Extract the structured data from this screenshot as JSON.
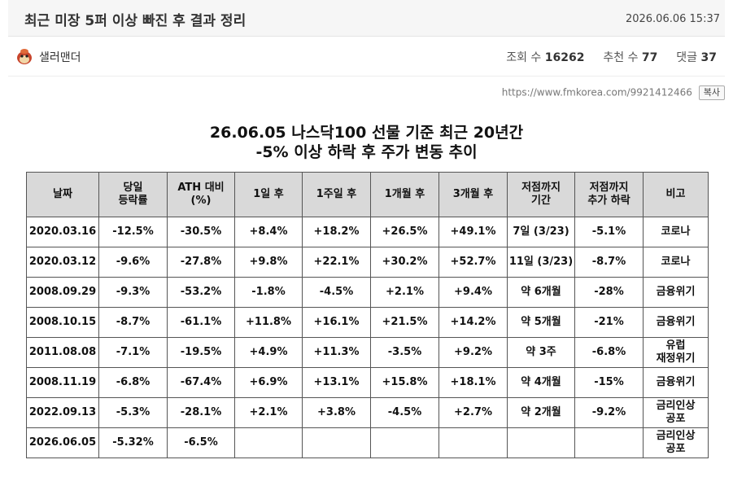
{
  "post": {
    "title": "최근 미장 5퍼 이상 빠진 후 결과 정리",
    "date": "2026.06.06 15:37",
    "author": "샐러맨더",
    "views_label": "조회 수",
    "views": "16262",
    "likes_label": "추천 수",
    "likes": "77",
    "comments_label": "댓글",
    "comments": "37",
    "url": "https://www.fmkorea.com/9921412466",
    "copy_label": "복사"
  },
  "table": {
    "title_line1": "26.06.05 나스닥100 선물 기준 최근 20년간",
    "title_line2": "-5% 이상 하락 후 주가 변동 추이",
    "headers": [
      [
        "날짜"
      ],
      [
        "당일",
        "등락률"
      ],
      [
        "ATH 대비",
        "(%)"
      ],
      [
        "1일 후"
      ],
      [
        "1주일 후"
      ],
      [
        "1개월 후"
      ],
      [
        "3개월 후"
      ],
      [
        "저점까지",
        "기간"
      ],
      [
        "저점까지",
        "추가 하락"
      ],
      [
        "비고"
      ]
    ],
    "rows": [
      [
        "2020.03.16",
        "-12.5%",
        "-30.5%",
        "+8.4%",
        "+18.2%",
        "+26.5%",
        "+49.1%",
        "7일 (3/23)",
        "-5.1%",
        "코로나"
      ],
      [
        "2020.03.12",
        "-9.6%",
        "-27.8%",
        "+9.8%",
        "+22.1%",
        "+30.2%",
        "+52.7%",
        "11일 (3/23)",
        "-8.7%",
        "코로나"
      ],
      [
        "2008.09.29",
        "-9.3%",
        "-53.2%",
        "-1.8%",
        "-4.5%",
        "+2.1%",
        "+9.4%",
        "약 6개월",
        "-28%",
        "금융위기"
      ],
      [
        "2008.10.15",
        "-8.7%",
        "-61.1%",
        "+11.8%",
        "+16.1%",
        "+21.5%",
        "+14.2%",
        "약 5개월",
        "-21%",
        "금융위기"
      ],
      [
        "2011.08.08",
        "-7.1%",
        "-19.5%",
        "+4.9%",
        "+11.3%",
        "-3.5%",
        "+9.2%",
        "약 3주",
        "-6.8%",
        "유럽\n재정위기"
      ],
      [
        "2008.11.19",
        "-6.8%",
        "-67.4%",
        "+6.9%",
        "+13.1%",
        "+15.8%",
        "+18.1%",
        "약 4개월",
        "-15%",
        "금융위기"
      ],
      [
        "2022.09.13",
        "-5.3%",
        "-28.1%",
        "+2.1%",
        "+3.8%",
        "-4.5%",
        "+2.7%",
        "약 2개월",
        "-9.2%",
        "금리인상\n공포"
      ],
      [
        "2026.06.05",
        "-5.32%",
        "-6.5%",
        "",
        "",
        "",
        "",
        "",
        "",
        "금리인상\n공포"
      ]
    ]
  }
}
